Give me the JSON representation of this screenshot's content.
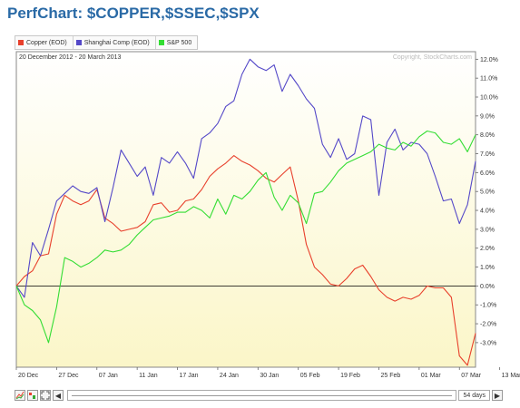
{
  "page_title": "PerfChart: $COPPER,$SSEC,$SPX",
  "legend": [
    {
      "label": "Copper (EOD)",
      "color": "#e8402c"
    },
    {
      "label": "Shanghai Comp (EOD)",
      "color": "#5448c8"
    },
    {
      "label": "S&P 500",
      "color": "#33dd33"
    }
  ],
  "controls": {
    "days_label": "54 days",
    "scroll_left": "◀",
    "scroll_right": "▶"
  },
  "chart_data": {
    "type": "line",
    "date_range": "20 December 2012 - 20 March 2013",
    "watermark": "Copyright, StockCharts.com",
    "x_labels": [
      "20 Dec",
      "27 Dec",
      "07 Jan",
      "11 Jan",
      "17 Jan",
      "24 Jan",
      "30 Jan",
      "05 Feb",
      "19 Feb",
      "25 Feb",
      "01 Mar",
      "07 Mar",
      "13 Mar"
    ],
    "x_label_index": [
      0,
      5,
      10,
      15,
      20,
      25,
      30,
      35,
      40,
      45,
      50,
      55,
      60
    ],
    "ylim": [
      -4.3,
      12.4
    ],
    "y_ticks": [
      12,
      11,
      10,
      9,
      8,
      7,
      6,
      5,
      4,
      3,
      2,
      1,
      0,
      -1,
      -2,
      -3
    ],
    "y_tick_labels": [
      "12.0%",
      "11.0%",
      "10.0%",
      "9.0%",
      "8.0%",
      "7.0%",
      "6.0%",
      "5.0%",
      "4.0%",
      "3.0%",
      "2.0%",
      "1.0%",
      "0.0%",
      "-1.0%",
      "-2.0%",
      "-3.0%"
    ],
    "grid": false,
    "series": [
      {
        "name": "Copper (EOD)",
        "color": "#e8402c",
        "values": [
          0.0,
          0.5,
          0.8,
          1.6,
          1.7,
          3.8,
          4.8,
          4.5,
          4.3,
          4.5,
          5.1,
          3.6,
          3.3,
          2.9,
          3.0,
          3.1,
          3.4,
          4.3,
          4.4,
          3.9,
          4.0,
          4.5,
          4.6,
          5.1,
          5.8,
          6.2,
          6.5,
          6.9,
          6.6,
          6.4,
          6.1,
          5.7,
          5.5,
          5.9,
          6.3,
          4.5,
          2.2,
          1.0,
          0.6,
          0.1,
          0.0,
          0.4,
          0.9,
          1.1,
          0.5,
          -0.2,
          -0.6,
          -0.8,
          -0.6,
          -0.7,
          -0.5,
          0.0,
          -0.1,
          -0.1,
          -0.6,
          -3.7,
          -4.2,
          -2.5
        ]
      },
      {
        "name": "Shanghai Comp (EOD)",
        "color": "#5448c8",
        "values": [
          0.0,
          -0.6,
          2.3,
          1.6,
          3.0,
          4.5,
          4.9,
          5.3,
          5.0,
          4.9,
          5.2,
          3.4,
          5.2,
          7.2,
          6.5,
          5.8,
          6.3,
          4.8,
          6.8,
          6.5,
          7.1,
          6.5,
          5.7,
          7.8,
          8.1,
          8.6,
          9.5,
          9.8,
          11.2,
          12.0,
          11.6,
          11.4,
          11.7,
          10.3,
          11.2,
          10.6,
          9.9,
          9.4,
          7.5,
          6.8,
          7.8,
          6.7,
          7.0,
          9.0,
          8.8,
          4.8,
          7.6,
          8.3,
          7.2,
          7.6,
          7.5,
          7.0,
          5.8,
          4.5,
          4.6,
          3.3,
          4.3,
          6.6
        ]
      },
      {
        "name": "S&P 500",
        "color": "#33dd33",
        "values": [
          0.0,
          -1.0,
          -1.3,
          -1.8,
          -3.0,
          -1.1,
          1.5,
          1.3,
          1.0,
          1.2,
          1.5,
          1.9,
          1.8,
          1.9,
          2.2,
          2.7,
          3.1,
          3.5,
          3.6,
          3.7,
          3.9,
          3.9,
          4.2,
          4.0,
          3.6,
          4.6,
          3.8,
          4.8,
          4.6,
          5.0,
          5.6,
          6.0,
          4.7,
          4.0,
          4.8,
          4.4,
          3.3,
          4.9,
          5.0,
          5.5,
          6.1,
          6.5,
          6.7,
          6.9,
          7.1,
          7.5,
          7.3,
          7.2,
          7.6,
          7.4,
          7.9,
          8.2,
          8.1,
          7.6,
          7.5,
          7.8,
          7.1,
          8.0
        ]
      }
    ]
  }
}
